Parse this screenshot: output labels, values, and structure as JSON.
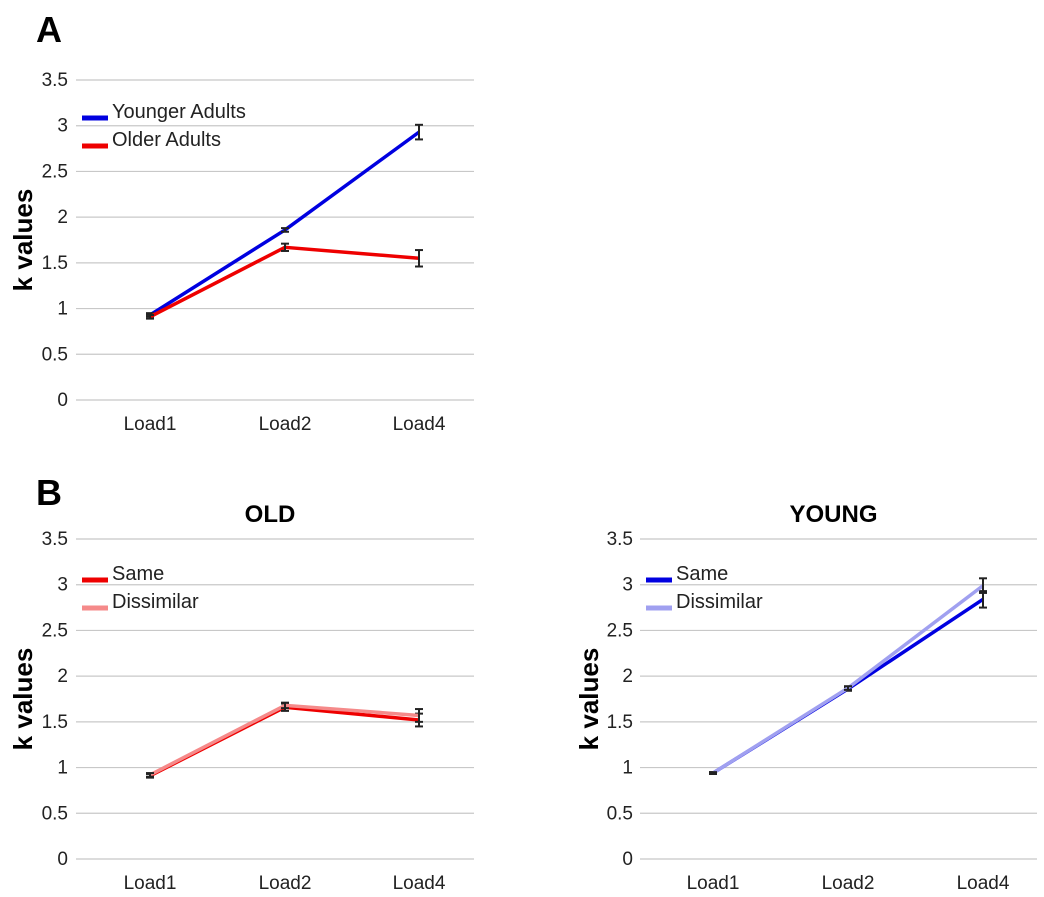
{
  "panels": [
    {
      "letter": "A"
    },
    {
      "letter": "B"
    }
  ],
  "chart_data": [
    {
      "type": "line",
      "panel": "A",
      "title": "",
      "xlabel": "",
      "ylabel": "k values",
      "categories": [
        "Load1",
        "Load2",
        "Load4"
      ],
      "ylim": [
        0,
        3.5
      ],
      "yticks": [
        "0",
        "0.5",
        "1",
        "1.5",
        "2",
        "2.5",
        "3",
        "3.5"
      ],
      "grid": true,
      "legend": "top-left",
      "series": [
        {
          "name": "Younger Adults",
          "color": "#0000e0",
          "values": [
            0.93,
            1.86,
            2.93
          ],
          "errors": [
            0.02,
            0.02,
            0.08
          ]
        },
        {
          "name": "Older Adults",
          "color": "#ee0000",
          "values": [
            0.91,
            1.67,
            1.55
          ],
          "errors": [
            0.02,
            0.04,
            0.09
          ]
        }
      ]
    },
    {
      "type": "line",
      "panel": "B",
      "title": "OLD",
      "xlabel": "",
      "ylabel": "k values",
      "categories": [
        "Load1",
        "Load2",
        "Load4"
      ],
      "ylim": [
        0,
        3.5
      ],
      "yticks": [
        "0",
        "0.5",
        "1",
        "1.5",
        "2",
        "2.5",
        "3",
        "3.5"
      ],
      "grid": true,
      "legend": "top-left",
      "series": [
        {
          "name": "Same",
          "color": "#ee0000",
          "values": [
            0.91,
            1.66,
            1.52
          ],
          "errors": [
            0.02,
            0.04,
            0.07
          ]
        },
        {
          "name": "Dissimilar",
          "color": "#f58a8a",
          "values": [
            0.92,
            1.68,
            1.57
          ],
          "errors": [
            0.02,
            0.03,
            0.07
          ]
        }
      ]
    },
    {
      "type": "line",
      "panel": "",
      "title": "YOUNG",
      "xlabel": "",
      "ylabel": "k values",
      "categories": [
        "Load1",
        "Load2",
        "Load4"
      ],
      "ylim": [
        0,
        3.5
      ],
      "yticks": [
        "0",
        "0.5",
        "1",
        "1.5",
        "2",
        "2.5",
        "3",
        "3.5"
      ],
      "grid": true,
      "legend": "top-left",
      "series": [
        {
          "name": "Same",
          "color": "#0000e0",
          "values": [
            0.94,
            1.86,
            2.84
          ],
          "errors": [
            0.01,
            0.02,
            0.09
          ]
        },
        {
          "name": "Dissimilar",
          "color": "#a0a0f0",
          "values": [
            0.94,
            1.87,
            2.99
          ],
          "errors": [
            0.01,
            0.02,
            0.08
          ]
        }
      ]
    }
  ]
}
